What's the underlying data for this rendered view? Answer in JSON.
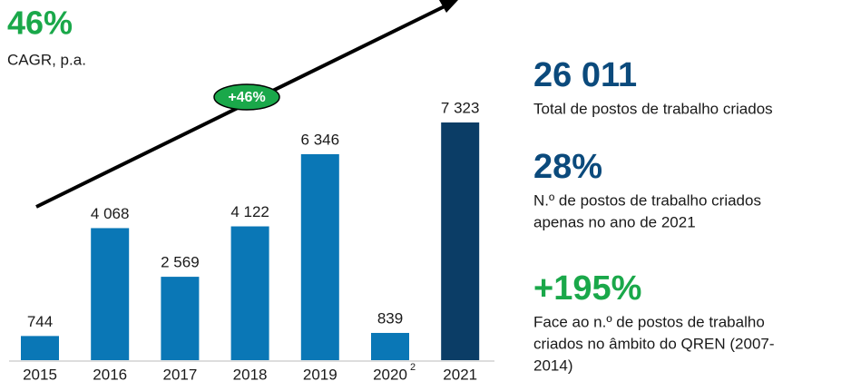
{
  "chart_data": {
    "type": "bar",
    "title": "46%",
    "subtitle": "CAGR, p.a.",
    "annotation": "+46%",
    "categories": [
      "2015",
      "2016",
      "2017",
      "2018",
      "2019",
      "2020",
      "2021"
    ],
    "category_superscripts": [
      null,
      null,
      null,
      null,
      null,
      "2",
      null
    ],
    "values": [
      744,
      4068,
      2569,
      4122,
      6346,
      839,
      7323
    ],
    "value_labels": [
      "744",
      "4 068",
      "2 569",
      "4 122",
      "6 346",
      "839",
      "7 323"
    ],
    "colors": [
      "#0a77b6",
      "#0a77b6",
      "#0a77b6",
      "#0a77b6",
      "#0a77b6",
      "#0a77b6",
      "#0b3d66"
    ]
  },
  "stats": [
    {
      "value": "26 011",
      "description": [
        "Total de postos de trabalho criados"
      ],
      "color": "#0b4a7c"
    },
    {
      "value": "28%",
      "description": [
        "N.º de postos de trabalho criados",
        "apenas no ano de 2021"
      ],
      "color": "#0b4a7c"
    },
    {
      "value": "+195%",
      "description": [
        "Face ao n.º de postos de trabalho",
        "criados no âmbito do QREN (2007-",
        "2014)"
      ],
      "color": "#1aa84a"
    }
  ]
}
